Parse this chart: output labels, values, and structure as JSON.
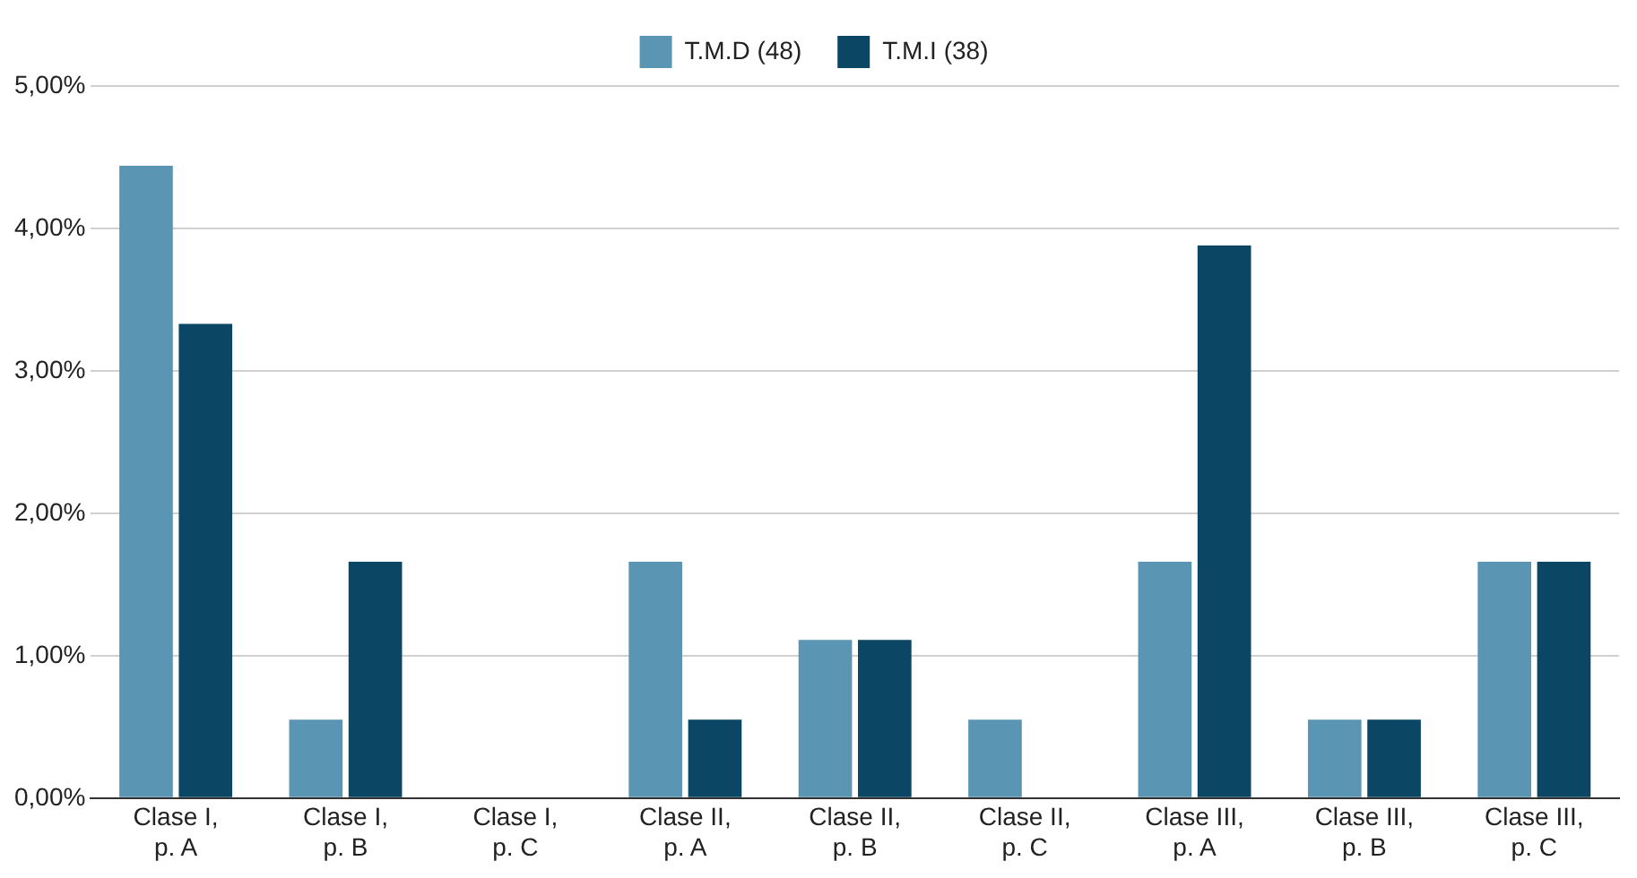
{
  "chart_data": {
    "type": "bar",
    "categories": [
      "Clase I,\np. A",
      "Clase I,\np. B",
      "Clase I,\np. C",
      "Clase II,\np. A",
      "Clase II,\np. B",
      "Clase II,\np. C",
      "Clase III,\np. A",
      "Clase III,\np. B",
      "Clase III,\np. C"
    ],
    "series": [
      {
        "name": "T.M.D (48)",
        "color": "#5b95b4",
        "values": [
          4.44,
          0.55,
          0,
          1.66,
          1.11,
          0.55,
          1.66,
          0.55,
          1.66
        ]
      },
      {
        "name": "T.M.I (38)",
        "color": "#0b4664",
        "values": [
          3.33,
          1.66,
          0,
          0.55,
          1.11,
          0,
          3.88,
          0.55,
          1.66
        ]
      }
    ],
    "ylim": [
      0,
      5
    ],
    "yticks": [
      {
        "value": 0,
        "label": "0,00%"
      },
      {
        "value": 1,
        "label": "1,00%"
      },
      {
        "value": 2,
        "label": "2,00%"
      },
      {
        "value": 3,
        "label": "3,00%"
      },
      {
        "value": 4,
        "label": "4,00%"
      },
      {
        "value": 5,
        "label": "5,00%"
      }
    ],
    "grid": "y",
    "legend": "top"
  }
}
